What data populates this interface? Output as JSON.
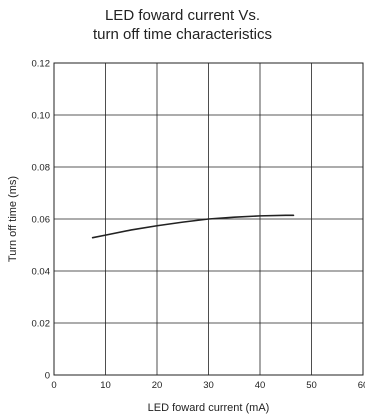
{
  "chart_data": {
    "type": "line",
    "title_lines": [
      "LED foward current Vs.",
      "turn off time characteristics"
    ],
    "xlabel": "LED foward current (mA)",
    "ylabel": "Turn off time (ms)",
    "xlim": [
      0,
      60
    ],
    "ylim": [
      0,
      0.12
    ],
    "x_ticks": [
      "0",
      "10",
      "20",
      "30",
      "40",
      "50",
      "60"
    ],
    "y_ticks": [
      "0",
      "0.02",
      "0.04",
      "0.06",
      "0.08",
      "0.10",
      "0.12"
    ],
    "grid": true,
    "series": [
      {
        "x": [
          7.5,
          10,
          15,
          20,
          25,
          30,
          35,
          40,
          45,
          46.5
        ],
        "y": [
          0.0528,
          0.0538,
          0.0558,
          0.0574,
          0.0588,
          0.06,
          0.0607,
          0.0612,
          0.0614,
          0.0614
        ],
        "color": "#222222"
      }
    ]
  }
}
